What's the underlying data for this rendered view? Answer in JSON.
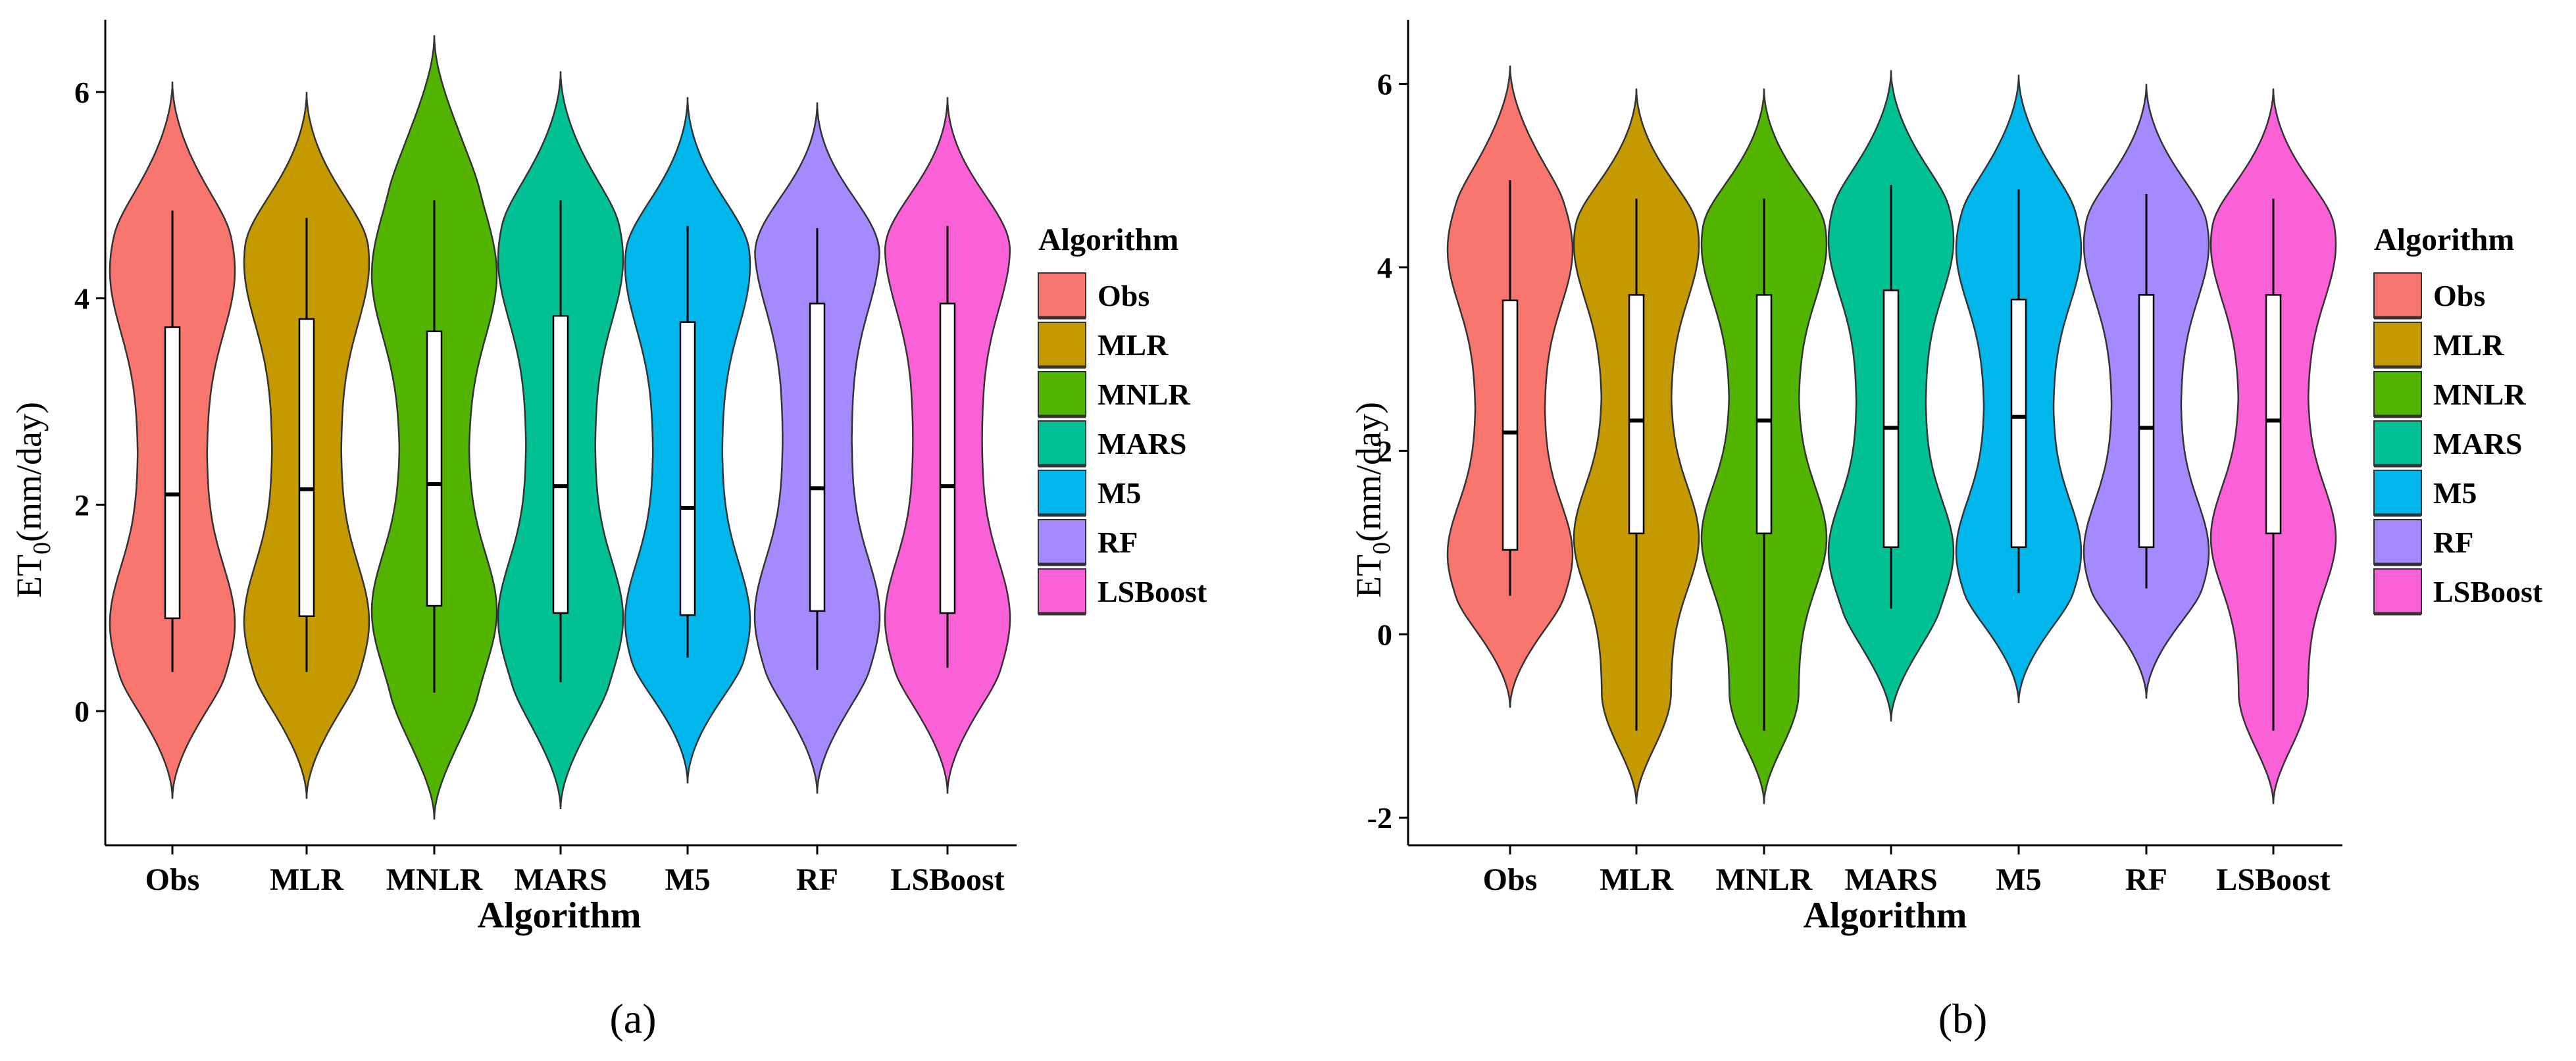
{
  "chart_data": [
    {
      "type": "violin",
      "panel_label": "(a)",
      "xlabel": "Algorithm",
      "ylabel_main": "ET",
      "ylabel_sub": "0",
      "ylabel_rest": "(mm/day)",
      "ylim": [
        -1.3,
        6.7
      ],
      "yticks": [
        0,
        2,
        4,
        6
      ],
      "legend_title": "Algorithm",
      "categories": [
        "Obs",
        "MLR",
        "MNLR",
        "MARS",
        "M5",
        "RF",
        "LSBoost"
      ],
      "series": [
        {
          "name": "Obs",
          "color": "#F8766D",
          "min": -0.85,
          "max": 6.1,
          "q1": 0.9,
          "median": 2.1,
          "q3": 3.72,
          "wlo": 0.38,
          "whi": 4.85
        },
        {
          "name": "MLR",
          "color": "#C49A00",
          "min": -0.85,
          "max": 6.0,
          "q1": 0.92,
          "median": 2.15,
          "q3": 3.8,
          "wlo": 0.38,
          "whi": 4.78
        },
        {
          "name": "MNLR",
          "color": "#53B400",
          "min": -1.05,
          "max": 6.55,
          "q1": 1.02,
          "median": 2.2,
          "q3": 3.68,
          "wlo": 0.18,
          "whi": 4.95
        },
        {
          "name": "MARS",
          "color": "#00C094",
          "min": -0.95,
          "max": 6.2,
          "q1": 0.95,
          "median": 2.18,
          "q3": 3.83,
          "wlo": 0.28,
          "whi": 4.95
        },
        {
          "name": "M5",
          "color": "#00B6EB",
          "min": -0.7,
          "max": 5.95,
          "q1": 0.93,
          "median": 1.97,
          "q3": 3.77,
          "wlo": 0.52,
          "whi": 4.7
        },
        {
          "name": "RF",
          "color": "#A58AFF",
          "min": -0.8,
          "max": 5.9,
          "q1": 0.97,
          "median": 2.16,
          "q3": 3.95,
          "wlo": 0.4,
          "whi": 4.68
        },
        {
          "name": "LSBoost",
          "color": "#FB61D7",
          "min": -0.8,
          "max": 5.95,
          "q1": 0.95,
          "median": 2.18,
          "q3": 3.95,
          "wlo": 0.42,
          "whi": 4.7
        }
      ]
    },
    {
      "type": "violin",
      "panel_label": "(b)",
      "xlabel": "Algorithm",
      "ylabel_main": "ET",
      "ylabel_sub": "0",
      "ylabel_rest": "(mm/day)",
      "ylim": [
        -2.3,
        6.7
      ],
      "yticks": [
        -2,
        0,
        2,
        4,
        6
      ],
      "legend_title": "Algorithm",
      "categories": [
        "Obs",
        "MLR",
        "MNLR",
        "MARS",
        "M5",
        "RF",
        "LSBoost"
      ],
      "series": [
        {
          "name": "Obs",
          "color": "#F8766D",
          "min": -0.8,
          "max": 6.2,
          "q1": 0.92,
          "median": 2.2,
          "q3": 3.64,
          "wlo": 0.42,
          "whi": 4.95
        },
        {
          "name": "MLR",
          "color": "#C49A00",
          "min": -1.85,
          "max": 5.95,
          "q1": 1.1,
          "median": 2.33,
          "q3": 3.7,
          "wlo": -1.05,
          "whi": 4.75
        },
        {
          "name": "MNLR",
          "color": "#53B400",
          "min": -1.85,
          "max": 5.95,
          "q1": 1.1,
          "median": 2.33,
          "q3": 3.7,
          "wlo": -1.05,
          "whi": 4.75
        },
        {
          "name": "MARS",
          "color": "#00C094",
          "min": -0.95,
          "max": 6.15,
          "q1": 0.95,
          "median": 2.25,
          "q3": 3.75,
          "wlo": 0.28,
          "whi": 4.9
        },
        {
          "name": "M5",
          "color": "#00B6EB",
          "min": -0.75,
          "max": 6.1,
          "q1": 0.95,
          "median": 2.37,
          "q3": 3.65,
          "wlo": 0.45,
          "whi": 4.85
        },
        {
          "name": "RF",
          "color": "#A58AFF",
          "min": -0.7,
          "max": 6.0,
          "q1": 0.95,
          "median": 2.25,
          "q3": 3.7,
          "wlo": 0.5,
          "whi": 4.8
        },
        {
          "name": "LSBoost",
          "color": "#FB61D7",
          "min": -1.85,
          "max": 5.95,
          "q1": 1.1,
          "median": 2.33,
          "q3": 3.7,
          "wlo": -1.05,
          "whi": 4.75
        }
      ]
    }
  ]
}
